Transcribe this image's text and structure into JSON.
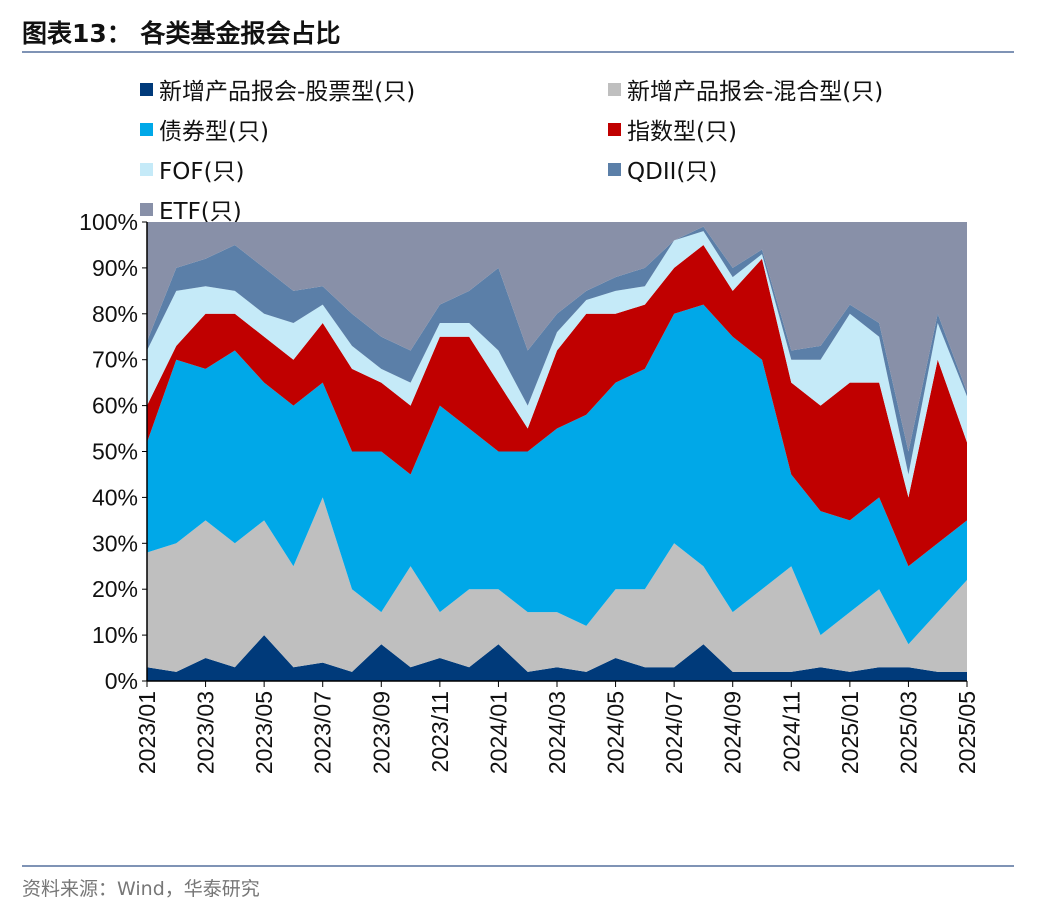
{
  "title": "图表13：  各类基金报会占比",
  "source": "资料来源：Wind，华泰研究",
  "chart_data": {
    "type": "area",
    "stacked": true,
    "title": "图表13：  各类基金报会占比",
    "legend_position": "top",
    "ylim": [
      0,
      100
    ],
    "y_ticks": [
      "0%",
      "10%",
      "20%",
      "30%",
      "40%",
      "50%",
      "60%",
      "70%",
      "80%",
      "90%",
      "100%"
    ],
    "x_ticks": [
      "2023/01",
      "2023/03",
      "2023/05",
      "2023/07",
      "2023/09",
      "2023/11",
      "2024/01",
      "2024/03",
      "2024/05",
      "2024/07",
      "2024/09",
      "2024/11",
      "2025/01",
      "2025/03",
      "2025/05"
    ],
    "x": [
      "2023/01",
      "2023/02",
      "2023/03",
      "2023/04",
      "2023/05",
      "2023/06",
      "2023/07",
      "2023/08",
      "2023/09",
      "2023/10",
      "2023/11",
      "2023/12",
      "2024/01",
      "2024/02",
      "2024/03",
      "2024/04",
      "2024/05",
      "2024/06",
      "2024/07",
      "2024/08",
      "2024/09",
      "2024/10",
      "2024/11",
      "2024/12",
      "2025/01",
      "2025/02",
      "2025/03",
      "2025/04",
      "2025/05"
    ],
    "series": [
      {
        "name": "新增产品报会-股票型(只)",
        "color": "#003a7a",
        "values": [
          3,
          2,
          5,
          3,
          10,
          3,
          4,
          2,
          8,
          3,
          5,
          3,
          8,
          2,
          3,
          2,
          5,
          3,
          3,
          8,
          2,
          2,
          2,
          3,
          2,
          3,
          3,
          2,
          2
        ]
      },
      {
        "name": "新增产品报会-混合型(只)",
        "color": "#bfbfbf",
        "values": [
          25,
          28,
          30,
          27,
          25,
          22,
          36,
          18,
          7,
          22,
          10,
          17,
          12,
          13,
          12,
          10,
          15,
          17,
          27,
          17,
          13,
          18,
          23,
          7,
          13,
          17,
          5,
          13,
          20
        ]
      },
      {
        "name": "债券型(只)",
        "color": "#00a8e8",
        "values": [
          24,
          40,
          33,
          42,
          30,
          35,
          25,
          30,
          35,
          20,
          45,
          35,
          30,
          35,
          40,
          46,
          45,
          48,
          50,
          57,
          60,
          50,
          20,
          27,
          20,
          20,
          17,
          15,
          13
        ]
      },
      {
        "name": "指数型(只)",
        "color": "#c00000",
        "values": [
          8,
          3,
          12,
          8,
          10,
          10,
          13,
          18,
          15,
          15,
          15,
          20,
          15,
          5,
          17,
          22,
          15,
          14,
          10,
          13,
          10,
          22,
          20,
          23,
          30,
          25,
          15,
          40,
          17
        ]
      },
      {
        "name": "FOF(只)",
        "color": "#c5eaf8",
        "values": [
          12,
          12,
          6,
          5,
          5,
          8,
          4,
          5,
          3,
          5,
          3,
          3,
          7,
          5,
          4,
          3,
          5,
          4,
          6,
          3,
          3,
          1,
          5,
          10,
          15,
          10,
          5,
          8,
          10
        ]
      },
      {
        "name": "QDII(只)",
        "color": "#5b7fa8",
        "values": [
          2,
          5,
          6,
          10,
          10,
          7,
          4,
          7,
          7,
          7,
          4,
          7,
          18,
          12,
          4,
          2,
          3,
          4,
          0,
          1,
          2,
          1,
          2,
          3,
          2,
          3,
          5,
          2,
          1
        ]
      },
      {
        "name": "ETF(只)",
        "color": "#8890a8",
        "values": [
          26,
          10,
          8,
          5,
          10,
          15,
          14,
          20,
          25,
          28,
          18,
          15,
          10,
          28,
          20,
          15,
          12,
          10,
          4,
          1,
          10,
          6,
          28,
          27,
          18,
          22,
          50,
          20,
          37
        ]
      }
    ]
  }
}
